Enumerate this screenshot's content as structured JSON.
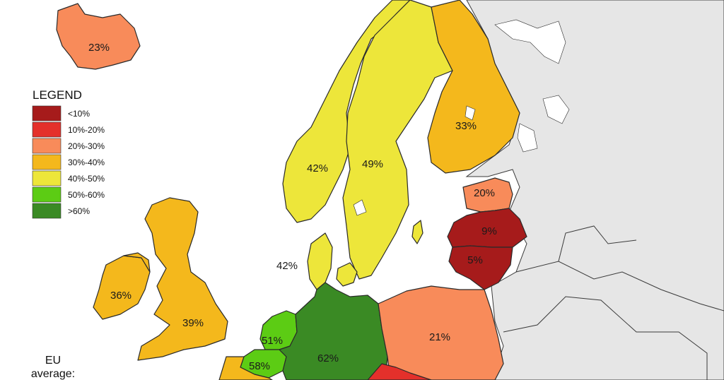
{
  "legend": {
    "title": "LEGEND",
    "items": [
      {
        "label": "<10%",
        "color": "#a61b1b"
      },
      {
        "label": "10%-20%",
        "color": "#e4302b"
      },
      {
        "label": "20%-30%",
        "color": "#f88b5a"
      },
      {
        "label": "30%-40%",
        "color": "#f4b81c"
      },
      {
        "label": "40%-50%",
        "color": "#ede63a"
      },
      {
        "label": "50%-60%",
        "color": "#5ccc14"
      },
      {
        "label": ">60%",
        "color": "#3a8a24"
      }
    ]
  },
  "eu_average": {
    "line1": "EU",
    "line2": "average:"
  },
  "colors": {
    "non_eu": "#e6e6e6",
    "sea": "#ffffff"
  },
  "countries": [
    {
      "id": "iceland",
      "label": "23%",
      "color": "#f88b5a"
    },
    {
      "id": "norway",
      "label": "42%",
      "color": "#ede63a"
    },
    {
      "id": "sweden",
      "label": "49%",
      "color": "#ede63a"
    },
    {
      "id": "finland",
      "label": "33%",
      "color": "#f4b81c"
    },
    {
      "id": "estonia",
      "label": "20%",
      "color": "#f88b5a"
    },
    {
      "id": "latvia",
      "label": "9%",
      "color": "#a61b1b"
    },
    {
      "id": "lithuania",
      "label": "5%",
      "color": "#a61b1b"
    },
    {
      "id": "denmark",
      "label": "42%",
      "color": "#ede63a"
    },
    {
      "id": "ireland",
      "label": "36%",
      "color": "#f4b81c"
    },
    {
      "id": "uk",
      "label": "39%",
      "color": "#f4b81c"
    },
    {
      "id": "netherlands",
      "label": "51%",
      "color": "#5ccc14"
    },
    {
      "id": "belgium",
      "label": "58%",
      "color": "#5ccc14"
    },
    {
      "id": "germany",
      "label": "62%",
      "color": "#3a8a24"
    },
    {
      "id": "poland",
      "label": "21%",
      "color": "#f88b5a"
    },
    {
      "id": "czechia",
      "label": "",
      "color": "#e4302b"
    },
    {
      "id": "france",
      "label": "",
      "color": "#f4b81c"
    }
  ]
}
